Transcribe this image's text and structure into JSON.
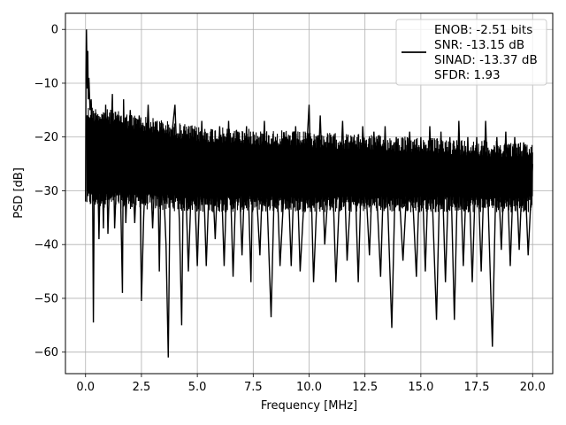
{
  "chart_data": {
    "type": "line",
    "xlabel": "Frequency [MHz]",
    "ylabel": "PSD [dB]",
    "xlim": [
      -0.9,
      20.9
    ],
    "ylim": [
      -64,
      3
    ],
    "xticks": [
      0.0,
      2.5,
      5.0,
      7.5,
      10.0,
      12.5,
      15.0,
      17.5,
      20.0
    ],
    "xtick_labels": [
      "0.0",
      "2.5",
      "5.0",
      "7.5",
      "10.0",
      "12.5",
      "15.0",
      "17.5",
      "20.0"
    ],
    "yticks": [
      0,
      -10,
      -20,
      -30,
      -40,
      -50,
      -60
    ],
    "ytick_labels": [
      "0",
      "−10",
      "−20",
      "−30",
      "−40",
      "−50",
      "−60"
    ],
    "grid": true,
    "legend_position": "top-right",
    "legend": [
      "ENOB: -2.51 bits",
      "SNR: -13.15 dB",
      "SINAD: -13.37 dB",
      "SFDR: 1.93"
    ],
    "series": [
      {
        "color": "#000000",
        "noise_band_upper": [
          [
            0.0,
            -14
          ],
          [
            5.0,
            -18
          ],
          [
            10.0,
            -19
          ],
          [
            15.0,
            -20
          ],
          [
            20.0,
            -21
          ]
        ],
        "noise_band_lower": [
          [
            0.0,
            -33
          ],
          [
            5.0,
            -34
          ],
          [
            10.0,
            -34
          ],
          [
            15.0,
            -34
          ],
          [
            20.0,
            -34
          ]
        ],
        "points": [
          [
            0.0,
            -32
          ],
          [
            0.02,
            -8
          ],
          [
            0.04,
            0
          ],
          [
            0.06,
            -6
          ],
          [
            0.08,
            -11
          ],
          [
            0.1,
            -4
          ],
          [
            0.12,
            -13
          ],
          [
            0.15,
            -9
          ],
          [
            0.2,
            -15
          ],
          [
            0.25,
            -13
          ],
          [
            0.3,
            -19
          ],
          [
            0.35,
            -54.5
          ],
          [
            0.4,
            -22
          ],
          [
            0.45,
            -32
          ],
          [
            0.5,
            -16
          ],
          [
            0.6,
            -39
          ],
          [
            0.7,
            -17
          ],
          [
            0.8,
            -37
          ],
          [
            0.9,
            -14
          ],
          [
            1.0,
            -38
          ],
          [
            1.2,
            -12
          ],
          [
            1.3,
            -37
          ],
          [
            1.5,
            -16
          ],
          [
            1.6,
            -38
          ],
          [
            1.7,
            -13
          ],
          [
            1.65,
            -49
          ],
          [
            1.8,
            -36
          ],
          [
            2.0,
            -15
          ],
          [
            2.2,
            -36
          ],
          [
            2.4,
            -16
          ],
          [
            2.5,
            -50.5
          ],
          [
            2.6,
            -35
          ],
          [
            2.8,
            -14
          ],
          [
            3.0,
            -37
          ],
          [
            3.2,
            -17
          ],
          [
            3.3,
            -45
          ],
          [
            3.4,
            -20
          ],
          [
            3.6,
            -40
          ],
          [
            3.7,
            -61
          ],
          [
            3.8,
            -22
          ],
          [
            4.0,
            -14
          ],
          [
            4.2,
            -36
          ],
          [
            4.3,
            -55
          ],
          [
            4.4,
            -18
          ],
          [
            4.6,
            -45
          ],
          [
            4.8,
            -20
          ],
          [
            5.0,
            -44
          ],
          [
            5.2,
            -17
          ],
          [
            5.4,
            -44
          ],
          [
            5.6,
            -20
          ],
          [
            5.8,
            -39
          ],
          [
            6.0,
            -18
          ],
          [
            6.2,
            -44
          ],
          [
            6.4,
            -17
          ],
          [
            6.6,
            -46
          ],
          [
            6.8,
            -19
          ],
          [
            7.0,
            -42
          ],
          [
            7.2,
            -18
          ],
          [
            7.4,
            -47
          ],
          [
            7.5,
            -19
          ],
          [
            7.8,
            -42
          ],
          [
            8.0,
            -17
          ],
          [
            8.3,
            -53.5
          ],
          [
            8.5,
            -20
          ],
          [
            8.7,
            -44
          ],
          [
            9.0,
            -20
          ],
          [
            9.2,
            -44
          ],
          [
            9.4,
            -18
          ],
          [
            9.6,
            -45
          ],
          [
            10.0,
            -14
          ],
          [
            10.2,
            -47
          ],
          [
            10.5,
            -16
          ],
          [
            10.7,
            -40
          ],
          [
            11.0,
            -20
          ],
          [
            11.2,
            -47
          ],
          [
            11.5,
            -17
          ],
          [
            11.7,
            -43
          ],
          [
            12.0,
            -20
          ],
          [
            12.2,
            -47
          ],
          [
            12.4,
            -18
          ],
          [
            12.7,
            -42
          ],
          [
            12.9,
            -19
          ],
          [
            13.2,
            -46
          ],
          [
            13.4,
            -18
          ],
          [
            13.7,
            -55.5
          ],
          [
            13.9,
            -20
          ],
          [
            14.2,
            -43
          ],
          [
            14.5,
            -19
          ],
          [
            14.8,
            -46
          ],
          [
            15.0,
            -20
          ],
          [
            15.2,
            -45
          ],
          [
            15.4,
            -18
          ],
          [
            15.7,
            -54
          ],
          [
            15.9,
            -19
          ],
          [
            16.1,
            -47
          ],
          [
            16.3,
            -20
          ],
          [
            16.5,
            -54
          ],
          [
            16.7,
            -17
          ],
          [
            16.9,
            -44
          ],
          [
            17.1,
            -20
          ],
          [
            17.3,
            -47
          ],
          [
            17.5,
            -20
          ],
          [
            17.7,
            -45
          ],
          [
            17.9,
            -17
          ],
          [
            18.2,
            -59
          ],
          [
            18.4,
            -20
          ],
          [
            18.6,
            -41
          ],
          [
            18.8,
            -19
          ],
          [
            19.0,
            -44
          ],
          [
            19.2,
            -20
          ],
          [
            19.4,
            -41
          ],
          [
            19.6,
            -21
          ],
          [
            19.8,
            -42
          ],
          [
            20.0,
            -25
          ]
        ]
      }
    ]
  }
}
